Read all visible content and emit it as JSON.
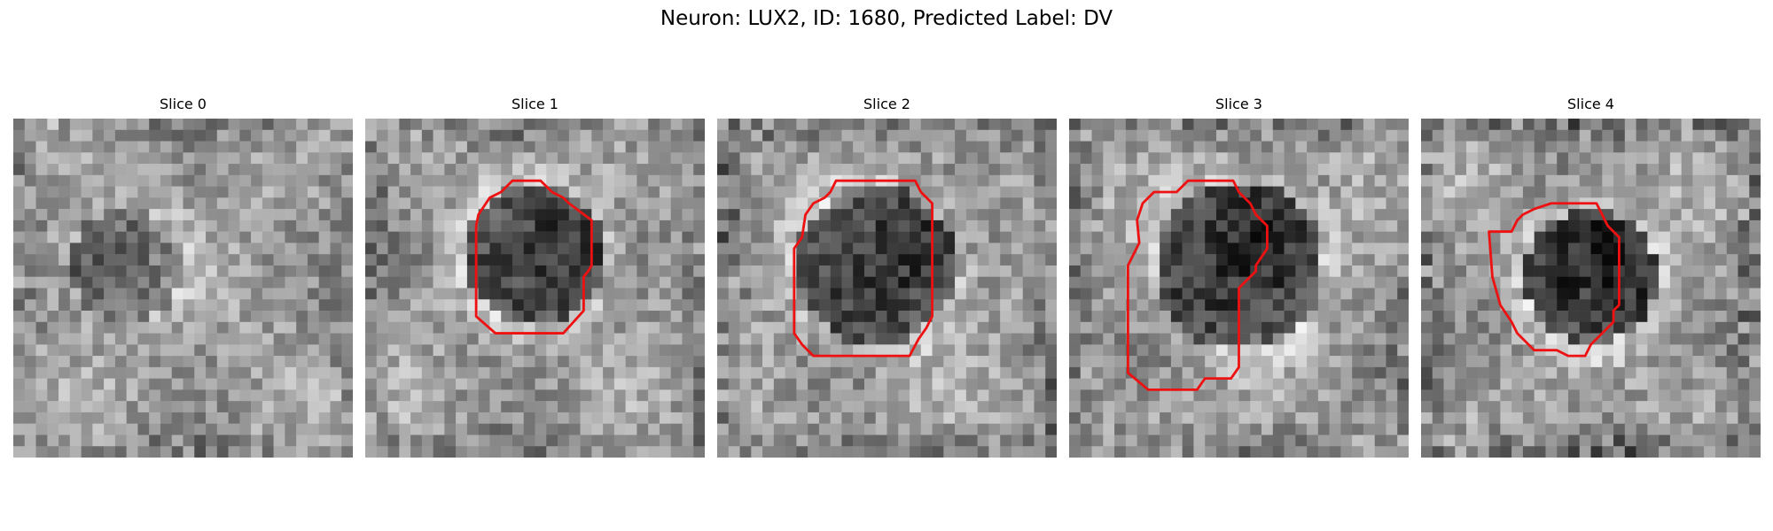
{
  "figure": {
    "title": "Neuron: LUX2, ID: 1680, Predicted Label: DV",
    "outline_color": "#ee1111",
    "colormap": "grayscale",
    "panels": [
      {
        "title": "Slice 0",
        "has_outline": false
      },
      {
        "title": "Slice 1",
        "has_outline": true
      },
      {
        "title": "Slice 2",
        "has_outline": true
      },
      {
        "title": "Slice 3",
        "has_outline": true
      },
      {
        "title": "Slice 4",
        "has_outline": true
      }
    ]
  }
}
